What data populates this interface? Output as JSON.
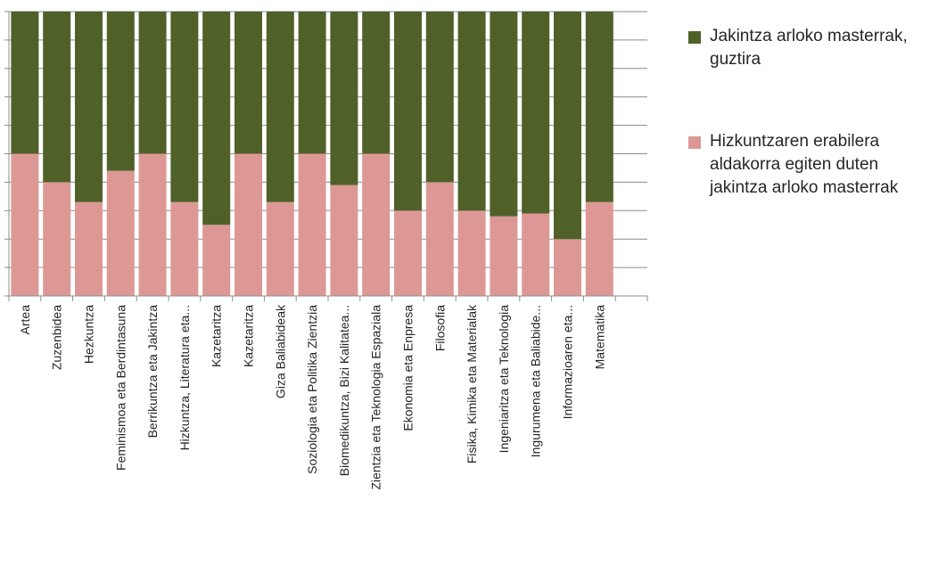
{
  "chart_data": {
    "type": "bar",
    "stacked": true,
    "percent": true,
    "categories": [
      "Artea",
      "Zuzenbidea",
      "Hezkuntza",
      "Feminismoa eta Berdintasuna",
      "Berrikuntza eta Jakintza",
      "Hizkuntza, Literatura eta...",
      "Kazetaritza",
      "Kazetaritza",
      "Giza Baliabideak",
      "Soziologia eta Politika Zientzia",
      "Biomedikuntza, Bizi Kalitatea...",
      "Zientzia eta Teknologia Espaziala",
      "Ekonomia eta Enpresa",
      "Filosofia",
      "Fisika, Kimika eta Materialak",
      "Ingeniaritza eta Teknologia",
      "Ingurumena eta Baliabide...",
      "Informazioaren eta...",
      "Matematika"
    ],
    "series": [
      {
        "name": "Hizkuntzaren erabilera aldakorra egiten duten jakintza arloko masterrak",
        "color": "#dd9896",
        "values": [
          50,
          40,
          33,
          44,
          50,
          33,
          25,
          50,
          33,
          50,
          39,
          50,
          30,
          40,
          30,
          28,
          29,
          20,
          33
        ]
      },
      {
        "name": "Jakintza arloko masterrak, guztira",
        "color": "#4f6128",
        "values": [
          50,
          60,
          67,
          56,
          50,
          67,
          75,
          50,
          67,
          50,
          61,
          50,
          70,
          60,
          70,
          72,
          71,
          80,
          67
        ]
      }
    ],
    "ylim": [
      0,
      100
    ],
    "gridlines": true,
    "y_tick_labels_visible": false,
    "legend_position": "right"
  },
  "legend": {
    "items": [
      {
        "label": "Jakintza arloko masterrak, guztira",
        "color": "#4f6128"
      },
      {
        "label": "Hizkuntzaren erabilera aldakorra egiten duten jakintza arloko masterrak",
        "color": "#dd9896"
      }
    ]
  }
}
